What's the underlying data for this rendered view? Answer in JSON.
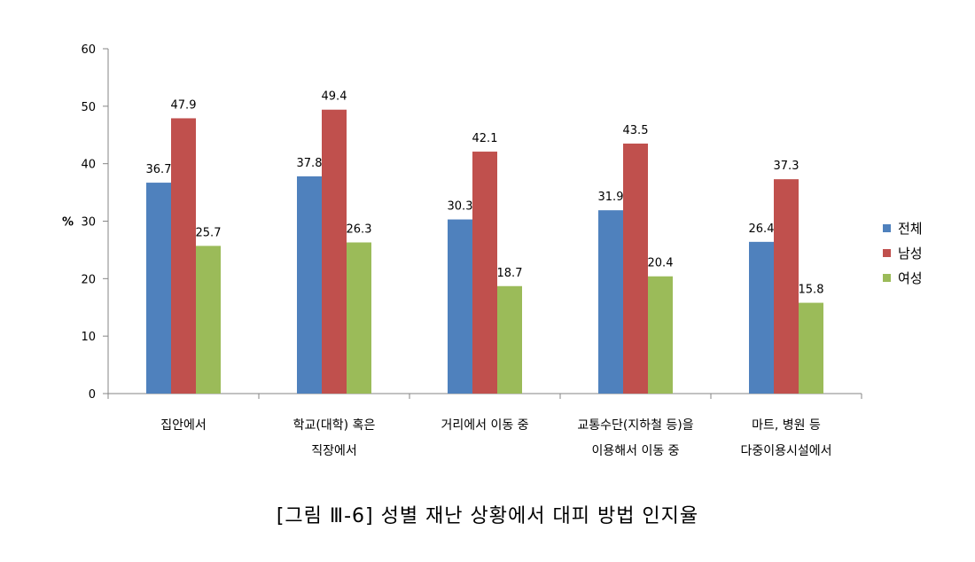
{
  "figure_caption": "[그림 Ⅲ-6] 성별 재난 상황에서 대피 방법 인지율",
  "chart_data": {
    "type": "bar",
    "title": "",
    "xlabel": "",
    "ylabel": "%",
    "ylim": [
      0,
      60
    ],
    "yticks": [
      0,
      10,
      20,
      30,
      40,
      50,
      60
    ],
    "grid": false,
    "legend_position": "right",
    "categories": [
      [
        "집안에서"
      ],
      [
        "학교(대학) 혹은",
        "직장에서"
      ],
      [
        "거리에서 이동 중"
      ],
      [
        "교통수단(지하철 등)을",
        "이용해서 이동 중"
      ],
      [
        "마트, 병원 등",
        "다중이용시설에서"
      ]
    ],
    "series": [
      {
        "name": "전체",
        "color": "#4F81BD",
        "values": [
          36.7,
          37.8,
          30.3,
          31.9,
          26.4
        ]
      },
      {
        "name": "남성",
        "color": "#C0504D",
        "values": [
          47.9,
          49.4,
          42.1,
          43.5,
          37.3
        ]
      },
      {
        "name": "여성",
        "color": "#9BBB59",
        "values": [
          25.7,
          26.3,
          18.7,
          20.4,
          15.8
        ]
      }
    ]
  }
}
